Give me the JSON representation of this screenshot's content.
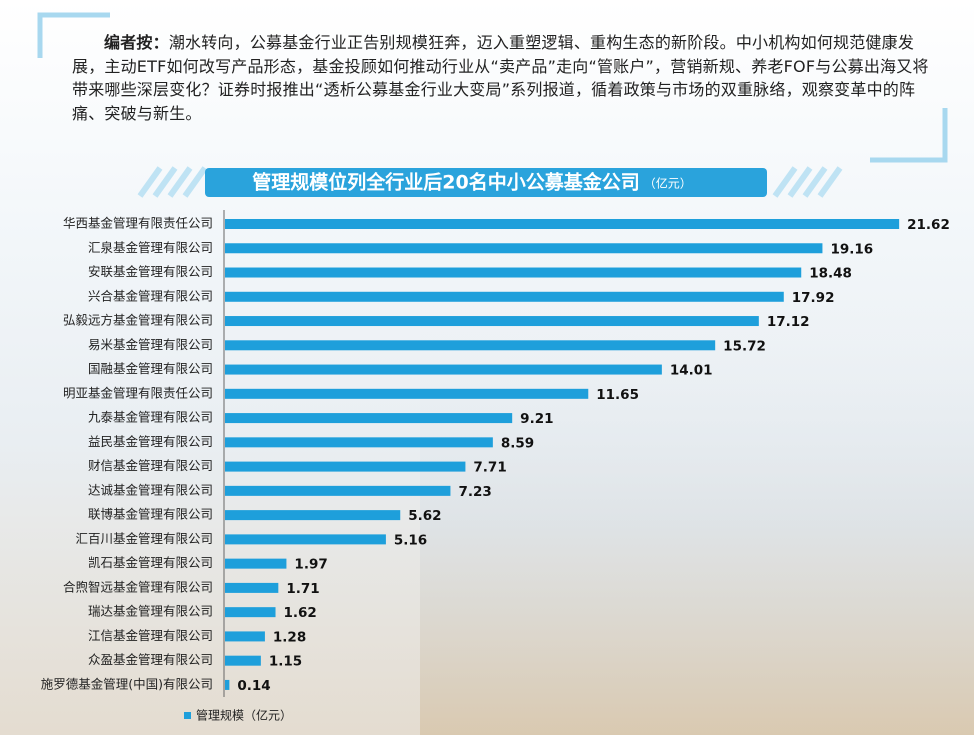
{
  "editor_note": {
    "label": "编者按：",
    "text": "潮水转向，公募基金行业正告别规模狂奔，迈入重塑逻辑、重构生态的新阶段。中小机构如何规范健康发展，主动ETF如何改写产品形态，基金投顾如何推动行业从“卖产品”走向“管账户”，营销新规、养老FOF与公募出海又将带来哪些深层变化？证券时报推出“透析公募基金行业大变局”系列报道，循着政策与市场的双重脉络，观察变革中的阵痛、突破与新生。"
  },
  "chart_data": {
    "type": "hbar",
    "title": "管理规模位列全行业后20名中小公募基金公司",
    "subtitle": "（亿元）",
    "categories": [
      "华西基金管理有限责任公司",
      "汇泉基金管理有限公司",
      "安联基金管理有限公司",
      "兴合基金管理有限公司",
      "弘毅远方基金管理有限公司",
      "易米基金管理有限公司",
      "国融基金管理有限公司",
      "明亚基金管理有限责任公司",
      "九泰基金管理有限公司",
      "益民基金管理有限公司",
      "财信基金管理有限公司",
      "达诚基金管理有限公司",
      "联博基金管理有限公司",
      "汇百川基金管理有限公司",
      "凯石基金管理有限公司",
      "合煦智远基金管理有限公司",
      "瑞达基金管理有限公司",
      "江信基金管理有限公司",
      "众盈基金管理有限公司",
      "施罗德基金管理(中国)有限公司"
    ],
    "series": [
      {
        "name": "管理规模（亿元）",
        "color": "#1e9fdb",
        "values": [
          21.62,
          19.16,
          18.48,
          17.92,
          17.12,
          15.72,
          14.01,
          11.65,
          9.21,
          8.59,
          7.71,
          7.23,
          5.62,
          5.16,
          1.97,
          1.71,
          1.62,
          1.28,
          1.15,
          0.14
        ]
      }
    ],
    "xlim": [
      0,
      22
    ],
    "legend": "bottom-left"
  }
}
